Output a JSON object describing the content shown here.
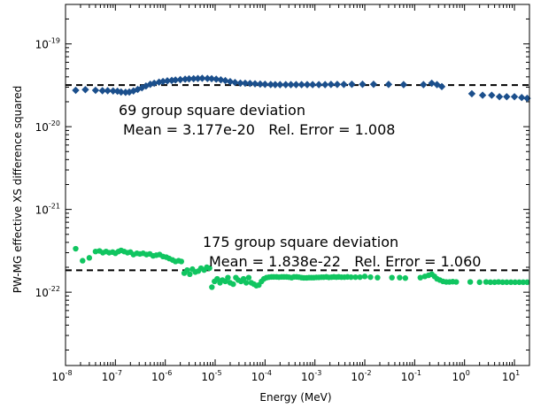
{
  "chart_data": {
    "type": "scatter",
    "xlabel": "Energy (MeV)",
    "ylabel": "PW-MG effective XS difference squared",
    "xscale": "log",
    "yscale": "log",
    "xlim": [
      1e-08,
      20
    ],
    "ylim": [
      1.3e-23,
      3e-19
    ],
    "x_ticks": [
      {
        "value": 1e-08,
        "base": "10",
        "exp": "-8"
      },
      {
        "value": 1e-07,
        "base": "10",
        "exp": "-7"
      },
      {
        "value": 1e-06,
        "base": "10",
        "exp": "-6"
      },
      {
        "value": 1e-05,
        "base": "10",
        "exp": "-5"
      },
      {
        "value": 0.0001,
        "base": "10",
        "exp": "-4"
      },
      {
        "value": 0.001,
        "base": "10",
        "exp": "-3"
      },
      {
        "value": 0.01,
        "base": "10",
        "exp": "-2"
      },
      {
        "value": 0.1,
        "base": "10",
        "exp": "-1"
      },
      {
        "value": 1,
        "base": "10",
        "exp": "0"
      },
      {
        "value": 10,
        "base": "10",
        "exp": "1"
      }
    ],
    "y_ticks": [
      {
        "value": 1e-22,
        "base": "10",
        "exp": "-22"
      },
      {
        "value": 1e-21,
        "base": "10",
        "exp": "-21"
      },
      {
        "value": 1e-20,
        "base": "10",
        "exp": "-20"
      },
      {
        "value": 1e-19,
        "base": "10",
        "exp": "-19"
      }
    ],
    "series": [
      {
        "marker": "diamond",
        "color": "#1b4f8c",
        "mean": 3.177e-20,
        "points": [
          [
            1.6e-08,
            2.75e-20
          ],
          [
            2.5e-08,
            2.8e-20
          ],
          [
            4e-08,
            2.75e-20
          ],
          [
            5.5e-08,
            2.72e-20
          ],
          [
            7e-08,
            2.72e-20
          ],
          [
            9e-08,
            2.7e-20
          ],
          [
            1.1e-07,
            2.68e-20
          ],
          [
            1.3e-07,
            2.62e-20
          ],
          [
            1.6e-07,
            2.6e-20
          ],
          [
            1.9e-07,
            2.62e-20
          ],
          [
            2.3e-07,
            2.7e-20
          ],
          [
            2.8e-07,
            2.82e-20
          ],
          [
            3.4e-07,
            2.95e-20
          ],
          [
            4.1e-07,
            3.1e-20
          ],
          [
            5e-07,
            3.25e-20
          ],
          [
            6e-07,
            3.35e-20
          ],
          [
            7.5e-07,
            3.45e-20
          ],
          [
            9e-07,
            3.52e-20
          ],
          [
            1.1e-06,
            3.58e-20
          ],
          [
            1.35e-06,
            3.62e-20
          ],
          [
            1.6e-06,
            3.66e-20
          ],
          [
            2e-06,
            3.7e-20
          ],
          [
            2.5e-06,
            3.75e-20
          ],
          [
            3e-06,
            3.78e-20
          ],
          [
            3.7e-06,
            3.8e-20
          ],
          [
            4.5e-06,
            3.82e-20
          ],
          [
            5.5e-06,
            3.84e-20
          ],
          [
            7e-06,
            3.82e-20
          ],
          [
            8.5e-06,
            3.8e-20
          ],
          [
            1.05e-05,
            3.75e-20
          ],
          [
            1.3e-05,
            3.68e-20
          ],
          [
            1.6e-05,
            3.6e-20
          ],
          [
            2e-05,
            3.5e-20
          ],
          [
            2.5e-05,
            3.42e-20
          ],
          [
            3.2e-05,
            3.36e-20
          ],
          [
            4e-05,
            3.35e-20
          ],
          [
            5e-05,
            3.33e-20
          ],
          [
            6.3e-05,
            3.3e-20
          ],
          [
            8e-05,
            3.27e-20
          ],
          [
            0.0001,
            3.25e-20
          ],
          [
            0.00013,
            3.23e-20
          ],
          [
            0.00016,
            3.22e-20
          ],
          [
            0.0002,
            3.22e-20
          ],
          [
            0.00026,
            3.22e-20
          ],
          [
            0.00033,
            3.22e-20
          ],
          [
            0.00042,
            3.22e-20
          ],
          [
            0.00054,
            3.22e-20
          ],
          [
            0.0007,
            3.22e-20
          ],
          [
            0.0009,
            3.22e-20
          ],
          [
            0.0012,
            3.22e-20
          ],
          [
            0.0016,
            3.22e-20
          ],
          [
            0.0021,
            3.24e-20
          ],
          [
            0.0028,
            3.24e-20
          ],
          [
            0.0038,
            3.24e-20
          ],
          [
            0.0055,
            3.25e-20
          ],
          [
            0.009,
            3.25e-20
          ],
          [
            0.015,
            3.25e-20
          ],
          [
            0.03,
            3.24e-20
          ],
          [
            0.06,
            3.22e-20
          ],
          [
            0.15,
            3.22e-20
          ],
          [
            0.22,
            3.35e-20
          ],
          [
            0.28,
            3.22e-20
          ],
          [
            0.35,
            3.05e-20
          ],
          [
            1.4,
            2.5e-20
          ],
          [
            2.3,
            2.4e-20
          ],
          [
            3.5,
            2.4e-20
          ],
          [
            5,
            2.3e-20
          ],
          [
            7,
            2.3e-20
          ],
          [
            10,
            2.3e-20
          ],
          [
            14,
            2.25e-20
          ],
          [
            18,
            2.2e-20
          ]
        ],
        "annotation_line1": "69 group square deviation",
        "annotation_line2": "Mean = 3.177e-20   Rel. Error = 1.008"
      },
      {
        "marker": "circle",
        "color": "#10c560",
        "mean": 1.838e-22,
        "points": [
          [
            1.6e-08,
            3.35e-22
          ],
          [
            2.2e-08,
            2.4e-22
          ],
          [
            3e-08,
            2.6e-22
          ],
          [
            4e-08,
            3.1e-22
          ],
          [
            4.8e-08,
            3.15e-22
          ],
          [
            5.6e-08,
            3e-22
          ],
          [
            6.5e-08,
            3.1e-22
          ],
          [
            7.5e-08,
            3e-22
          ],
          [
            8.8e-08,
            3.05e-22
          ],
          [
            1e-07,
            2.95e-22
          ],
          [
            1.15e-07,
            3.1e-22
          ],
          [
            1.3e-07,
            3.2e-22
          ],
          [
            1.5e-07,
            3.1e-22
          ],
          [
            1.75e-07,
            3e-22
          ],
          [
            2e-07,
            3.05e-22
          ],
          [
            2.3e-07,
            2.85e-22
          ],
          [
            2.7e-07,
            2.95e-22
          ],
          [
            3.1e-07,
            2.9e-22
          ],
          [
            3.6e-07,
            2.95e-22
          ],
          [
            4.2e-07,
            2.85e-22
          ],
          [
            4.9e-07,
            2.9e-22
          ],
          [
            5.7e-07,
            2.75e-22
          ],
          [
            6.6e-07,
            2.8e-22
          ],
          [
            7.7e-07,
            2.85e-22
          ],
          [
            9e-07,
            2.7e-22
          ],
          [
            1.05e-06,
            2.65e-22
          ],
          [
            1.2e-06,
            2.55e-22
          ],
          [
            1.4e-06,
            2.45e-22
          ],
          [
            1.6e-06,
            2.35e-22
          ],
          [
            1.85e-06,
            2.4e-22
          ],
          [
            2.1e-06,
            2.35e-22
          ],
          [
            2.4e-06,
            1.7e-22
          ],
          [
            2.75e-06,
            1.85e-22
          ],
          [
            3.1e-06,
            1.65e-22
          ],
          [
            3.5e-06,
            1.9e-22
          ],
          [
            4e-06,
            1.75e-22
          ],
          [
            4.6e-06,
            1.8e-22
          ],
          [
            5.2e-06,
            1.95e-22
          ],
          [
            6e-06,
            1.85e-22
          ],
          [
            6.8e-06,
            2e-22
          ],
          [
            7.7e-06,
            1.95e-22
          ],
          [
            8.6e-06,
            1.15e-22
          ],
          [
            9.7e-06,
            1.35e-22
          ],
          [
            1.1e-05,
            1.45e-22
          ],
          [
            1.25e-05,
            1.3e-22
          ],
          [
            1.4e-05,
            1.4e-22
          ],
          [
            1.6e-05,
            1.35e-22
          ],
          [
            1.8e-05,
            1.5e-22
          ],
          [
            2e-05,
            1.3e-22
          ],
          [
            2.3e-05,
            1.25e-22
          ],
          [
            2.6e-05,
            1.5e-22
          ],
          [
            2.9e-05,
            1.4e-22
          ],
          [
            3.3e-05,
            1.35e-22
          ],
          [
            3.7e-05,
            1.45e-22
          ],
          [
            4.2e-05,
            1.3e-22
          ],
          [
            4.7e-05,
            1.5e-22
          ],
          [
            5.3e-05,
            1.3e-22
          ],
          [
            6e-05,
            1.25e-22
          ],
          [
            6.7e-05,
            1.2e-22
          ],
          [
            7.5e-05,
            1.22e-22
          ],
          [
            8.5e-05,
            1.35e-22
          ],
          [
            9.5e-05,
            1.45e-22
          ],
          [
            0.000107,
            1.5e-22
          ],
          [
            0.00012,
            1.52e-22
          ],
          [
            0.000135,
            1.53e-22
          ],
          [
            0.00015,
            1.53e-22
          ],
          [
            0.00017,
            1.53e-22
          ],
          [
            0.00019,
            1.52e-22
          ],
          [
            0.000215,
            1.53e-22
          ],
          [
            0.00024,
            1.53e-22
          ],
          [
            0.00027,
            1.53e-22
          ],
          [
            0.0003,
            1.52e-22
          ],
          [
            0.00034,
            1.5e-22
          ],
          [
            0.00038,
            1.53e-22
          ],
          [
            0.00043,
            1.53e-22
          ],
          [
            0.00048,
            1.52e-22
          ],
          [
            0.00054,
            1.5e-22
          ],
          [
            0.0006,
            1.49e-22
          ],
          [
            0.00068,
            1.49e-22
          ],
          [
            0.00076,
            1.5e-22
          ],
          [
            0.00085,
            1.5e-22
          ],
          [
            0.00095,
            1.5e-22
          ],
          [
            0.00107,
            1.51e-22
          ],
          [
            0.0012,
            1.51e-22
          ],
          [
            0.00135,
            1.52e-22
          ],
          [
            0.0015,
            1.52e-22
          ],
          [
            0.0017,
            1.53e-22
          ],
          [
            0.0019,
            1.51e-22
          ],
          [
            0.00215,
            1.52e-22
          ],
          [
            0.0024,
            1.53e-22
          ],
          [
            0.0027,
            1.52e-22
          ],
          [
            0.003,
            1.53e-22
          ],
          [
            0.0034,
            1.52e-22
          ],
          [
            0.0039,
            1.52e-22
          ],
          [
            0.0045,
            1.53e-22
          ],
          [
            0.0053,
            1.52e-22
          ],
          [
            0.0065,
            1.52e-22
          ],
          [
            0.008,
            1.52e-22
          ],
          [
            0.01,
            1.55e-22
          ],
          [
            0.013,
            1.52e-22
          ],
          [
            0.018,
            1.5e-22
          ],
          [
            0.035,
            1.5e-22
          ],
          [
            0.05,
            1.5e-22
          ],
          [
            0.065,
            1.48e-22
          ],
          [
            0.13,
            1.5e-22
          ],
          [
            0.16,
            1.55e-22
          ],
          [
            0.19,
            1.6e-22
          ],
          [
            0.22,
            1.65e-22
          ],
          [
            0.25,
            1.55e-22
          ],
          [
            0.28,
            1.45e-22
          ],
          [
            0.32,
            1.4e-22
          ],
          [
            0.37,
            1.35e-22
          ],
          [
            0.43,
            1.33e-22
          ],
          [
            0.5,
            1.33e-22
          ],
          [
            0.58,
            1.34e-22
          ],
          [
            0.68,
            1.33e-22
          ],
          [
            1.3,
            1.33e-22
          ],
          [
            2,
            1.32e-22
          ],
          [
            2.7,
            1.33e-22
          ],
          [
            3.3,
            1.32e-22
          ],
          [
            4,
            1.32e-22
          ],
          [
            4.8,
            1.33e-22
          ],
          [
            5.8,
            1.32e-22
          ],
          [
            7,
            1.32e-22
          ],
          [
            8.5,
            1.32e-22
          ],
          [
            10.3,
            1.32e-22
          ],
          [
            12.5,
            1.32e-22
          ],
          [
            15,
            1.32e-22
          ],
          [
            18,
            1.32e-22
          ]
        ],
        "annotation_line1": "175 group square deviation",
        "annotation_line2": "Mean = 1.838e-22   Rel. Error = 1.060"
      }
    ]
  }
}
